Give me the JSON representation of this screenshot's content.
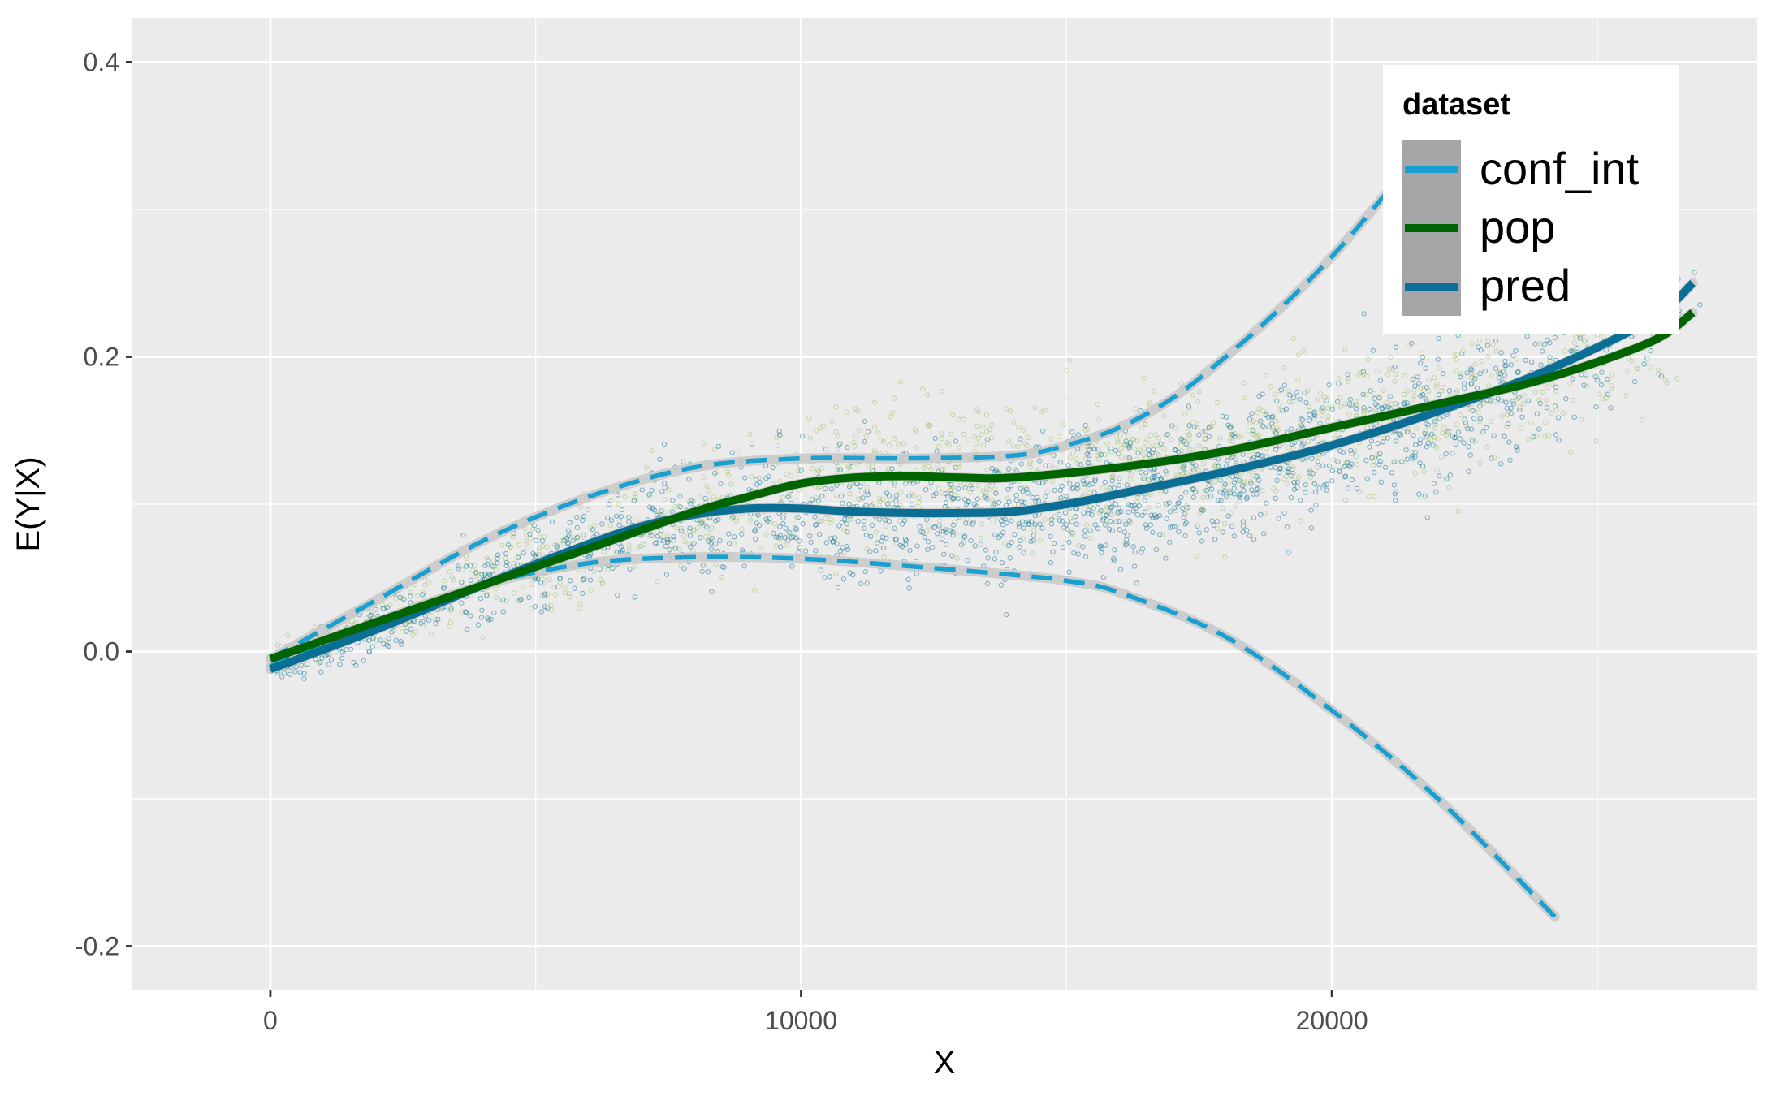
{
  "chart_data": {
    "type": "scatter",
    "xlabel": "X",
    "ylabel": "E(Y|X)",
    "xlim": [
      -2600,
      28000
    ],
    "ylim": [
      -0.23,
      0.43
    ],
    "x_ticks": [
      0,
      10000,
      20000
    ],
    "x_tick_labels": [
      "0",
      "10000",
      "20000"
    ],
    "y_ticks": [
      -0.2,
      0.0,
      0.2,
      0.4
    ],
    "y_tick_labels": [
      "-0.2",
      "0.0",
      "0.2",
      "0.4"
    ],
    "grid": true,
    "legend": {
      "title": "dataset",
      "position": "top-right",
      "entries": [
        {
          "label": "conf_int",
          "color": "#1a9fd1",
          "style": "dashed"
        },
        {
          "label": "pop",
          "color": "#006400",
          "style": "solid"
        },
        {
          "label": "pred",
          "color": "#0b6e95",
          "style": "solid"
        }
      ]
    },
    "colors": {
      "panel_background": "#ebebeb",
      "grid": "#ffffff",
      "ribbon": "#c8c8c8",
      "points_pred": "#0b6e95",
      "points_pop": "#8db545"
    },
    "series": [
      {
        "name": "pop",
        "x": [
          0,
          2000,
          4000,
          6000,
          8000,
          9000,
          10000,
          11000,
          12000,
          13000,
          14000,
          16000,
          18000,
          20000,
          22000,
          24000,
          26000,
          26800
        ],
        "y": [
          -0.005,
          0.02,
          0.045,
          0.07,
          0.095,
          0.105,
          0.114,
          0.118,
          0.119,
          0.118,
          0.118,
          0.125,
          0.136,
          0.152,
          0.168,
          0.185,
          0.21,
          0.23
        ]
      },
      {
        "name": "pred",
        "x": [
          0,
          2000,
          4000,
          6000,
          7000,
          8000,
          9000,
          10000,
          11000,
          12000,
          13000,
          14000,
          15000,
          16000,
          18000,
          20000,
          22000,
          24000,
          26000,
          26800
        ],
        "y": [
          -0.012,
          0.015,
          0.045,
          0.073,
          0.085,
          0.093,
          0.097,
          0.097,
          0.095,
          0.094,
          0.094,
          0.095,
          0.1,
          0.107,
          0.122,
          0.14,
          0.163,
          0.19,
          0.225,
          0.25
        ]
      },
      {
        "name": "conf_int",
        "x": [
          0,
          2000,
          4000,
          6000,
          8000,
          10000,
          12000,
          14000,
          15000,
          16000,
          17000,
          18000,
          19000,
          20000,
          21000,
          22000
        ],
        "y": [
          -0.005,
          0.035,
          0.075,
          0.105,
          0.125,
          0.131,
          0.131,
          0.133,
          0.14,
          0.152,
          0.172,
          0.2,
          0.232,
          0.268,
          0.31,
          0.355
        ]
      },
      {
        "name": "conf_int",
        "x": [
          0,
          2000,
          4000,
          6000,
          8000,
          10000,
          12000,
          14000,
          15000,
          16000,
          18000,
          20000,
          22000,
          24200
        ],
        "y": [
          -0.01,
          0.02,
          0.045,
          0.06,
          0.064,
          0.063,
          0.058,
          0.052,
          0.048,
          0.04,
          0.01,
          -0.04,
          -0.1,
          -0.18
        ]
      }
    ]
  }
}
